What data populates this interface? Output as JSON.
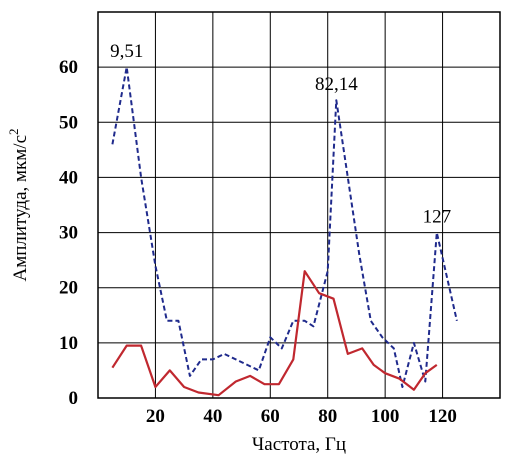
{
  "chart_data": {
    "type": "line",
    "xlabel": "Частота, Гц",
    "ylabel": "Амплитуда, мкм/с",
    "ylabel_sup": "2",
    "xlim": [
      0,
      140
    ],
    "ylim": [
      0,
      70
    ],
    "x_ticks": [
      20,
      40,
      60,
      80,
      100,
      120
    ],
    "x_tick_labels": [
      "20",
      "40",
      "60",
      "80",
      "100",
      "120"
    ],
    "y_ticks": [
      0,
      10,
      20,
      30,
      40,
      50,
      60
    ],
    "y_tick_labels": [
      "0",
      "10",
      "20",
      "30",
      "40",
      "50",
      "60"
    ],
    "grid": true,
    "legend": "none",
    "series": [
      {
        "color": "#1f2a8c",
        "style": "dashed",
        "points": [
          [
            5,
            46
          ],
          [
            10,
            60
          ],
          [
            15,
            40
          ],
          [
            20,
            24
          ],
          [
            24,
            14
          ],
          [
            28,
            14
          ],
          [
            32,
            4
          ],
          [
            36,
            7
          ],
          [
            40,
            7
          ],
          [
            44,
            8
          ],
          [
            48,
            7
          ],
          [
            52,
            6
          ],
          [
            56,
            5
          ],
          [
            60,
            11
          ],
          [
            64,
            9
          ],
          [
            68,
            14
          ],
          [
            72,
            14
          ],
          [
            75,
            13
          ],
          [
            80,
            23
          ],
          [
            83,
            54
          ],
          [
            87,
            40
          ],
          [
            91,
            26
          ],
          [
            95,
            14
          ],
          [
            99,
            11
          ],
          [
            103,
            9
          ],
          [
            106,
            2
          ],
          [
            110,
            10
          ],
          [
            114,
            3
          ],
          [
            118,
            30
          ],
          [
            125,
            14
          ]
        ]
      },
      {
        "color": "#c0282f",
        "style": "solid",
        "points": [
          [
            5,
            5.5
          ],
          [
            10,
            9.5
          ],
          [
            15,
            9.5
          ],
          [
            20,
            2
          ],
          [
            25,
            5
          ],
          [
            30,
            2
          ],
          [
            35,
            1
          ],
          [
            42,
            0.5
          ],
          [
            48,
            3
          ],
          [
            53,
            4
          ],
          [
            58,
            2.5
          ],
          [
            63,
            2.5
          ],
          [
            68,
            7
          ],
          [
            72,
            23
          ],
          [
            77,
            19
          ],
          [
            82,
            18
          ],
          [
            87,
            8
          ],
          [
            92,
            9
          ],
          [
            96,
            6
          ],
          [
            100,
            4.5
          ],
          [
            105,
            3.5
          ],
          [
            110,
            1.5
          ],
          [
            114,
            4.5
          ],
          [
            118,
            6
          ]
        ]
      }
    ],
    "annotations": [
      {
        "text": "9,51",
        "x": 10,
        "y": 60
      },
      {
        "text": "82,14",
        "x": 83,
        "y": 54
      },
      {
        "text": "127",
        "x": 118,
        "y": 30
      }
    ]
  }
}
